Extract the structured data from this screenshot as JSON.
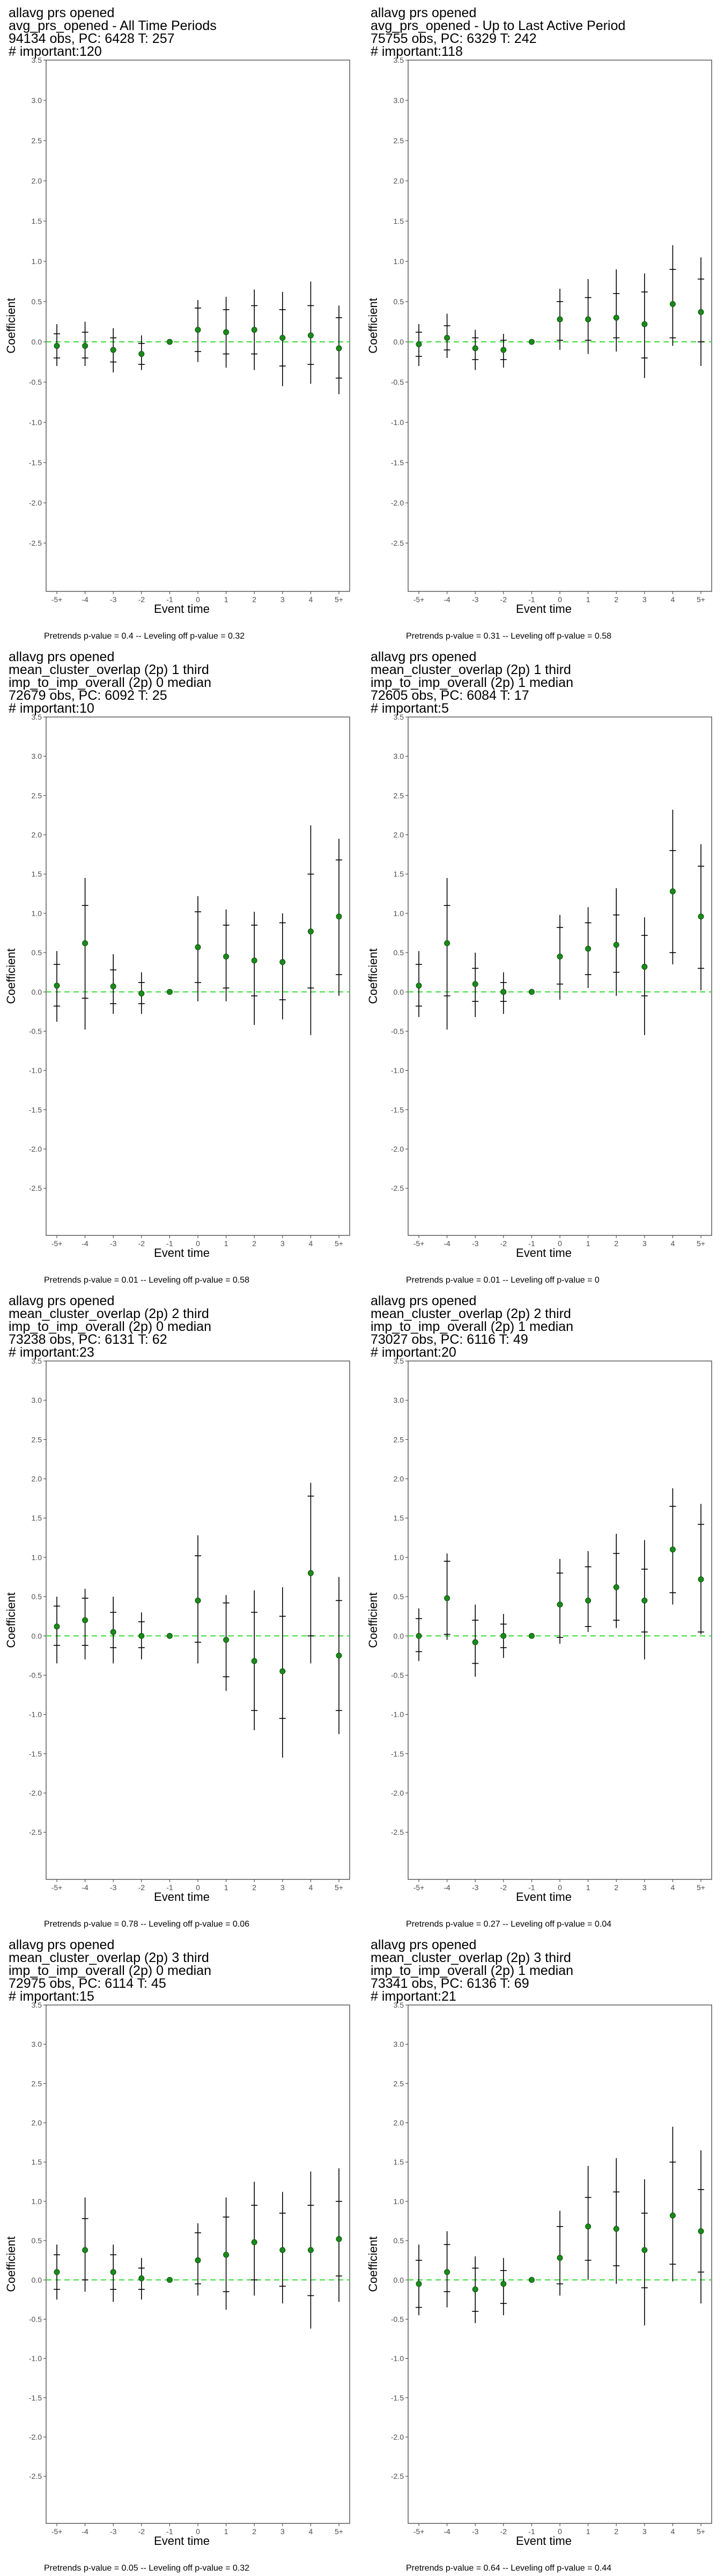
{
  "chart_data": [
    {
      "type": "scatter",
      "title_lines": [
        "allavg prs opened",
        "avg_prs_opened - All Time Periods",
        "94134 obs, PC: 6428 T: 257",
        "# important:120"
      ],
      "xlabel": "Event time",
      "ylabel": "Coefficient",
      "categories": [
        "-5+",
        "-4",
        "-3",
        "-2",
        "-1",
        "0",
        "1",
        "2",
        "3",
        "4",
        "5+"
      ],
      "yticks": [
        "3.5",
        "3.0",
        "2.5",
        "2.0",
        "1.5",
        "1.0",
        "0.5",
        "0.0",
        "-0.5",
        "-1.0",
        "-1.5",
        "-2.0",
        "-2.5"
      ],
      "ylim": [
        -3.1,
        3.5
      ],
      "reference_line": 0,
      "values": [
        -0.05,
        -0.05,
        -0.1,
        -0.15,
        0,
        0.15,
        0.12,
        0.15,
        0.05,
        0.08,
        -0.08
      ],
      "inner_ci": [
        [
          -0.2,
          0.1
        ],
        [
          -0.2,
          0.12
        ],
        [
          -0.25,
          0.05
        ],
        [
          -0.28,
          -0.02
        ],
        [
          0,
          0
        ],
        [
          -0.12,
          0.42
        ],
        [
          -0.15,
          0.4
        ],
        [
          -0.15,
          0.45
        ],
        [
          -0.3,
          0.4
        ],
        [
          -0.28,
          0.45
        ],
        [
          -0.45,
          0.3
        ]
      ],
      "outer_ci": [
        [
          -0.3,
          0.22
        ],
        [
          -0.3,
          0.25
        ],
        [
          -0.38,
          0.17
        ],
        [
          -0.35,
          0.08
        ],
        [
          0,
          0
        ],
        [
          -0.25,
          0.52
        ],
        [
          -0.32,
          0.56
        ],
        [
          -0.35,
          0.65
        ],
        [
          -0.55,
          0.62
        ],
        [
          -0.52,
          0.75
        ],
        [
          -0.65,
          0.45
        ]
      ],
      "caption": "Pretrends p-value = 0.4 -- Leveling off p-value = 0.32"
    },
    {
      "type": "scatter",
      "title_lines": [
        "allavg prs opened",
        "avg_prs_opened - Up to Last Active Period",
        "75755 obs, PC: 6329 T: 242",
        "# important:118"
      ],
      "xlabel": "Event time",
      "ylabel": "Coefficient",
      "categories": [
        "-5+",
        "-4",
        "-3",
        "-2",
        "-1",
        "0",
        "1",
        "2",
        "3",
        "4",
        "5+"
      ],
      "yticks": [
        "3.5",
        "3.0",
        "2.5",
        "2.0",
        "1.5",
        "1.0",
        "0.5",
        "0.0",
        "-0.5",
        "-1.0",
        "-1.5",
        "-2.0",
        "-2.5"
      ],
      "ylim": [
        -3.1,
        3.5
      ],
      "reference_line": 0,
      "values": [
        -0.03,
        0.05,
        -0.08,
        -0.1,
        0,
        0.28,
        0.28,
        0.3,
        0.22,
        0.47,
        0.37
      ],
      "inner_ci": [
        [
          -0.18,
          0.12
        ],
        [
          -0.1,
          0.2
        ],
        [
          -0.22,
          0.05
        ],
        [
          -0.22,
          0.02
        ],
        [
          0,
          0
        ],
        [
          0.02,
          0.5
        ],
        [
          0.02,
          0.55
        ],
        [
          0.05,
          0.6
        ],
        [
          -0.2,
          0.62
        ],
        [
          0.05,
          0.9
        ],
        [
          0.0,
          0.78
        ]
      ],
      "outer_ci": [
        [
          -0.3,
          0.22
        ],
        [
          -0.2,
          0.35
        ],
        [
          -0.35,
          0.15
        ],
        [
          -0.32,
          0.1
        ],
        [
          0,
          0
        ],
        [
          -0.1,
          0.66
        ],
        [
          -0.15,
          0.78
        ],
        [
          -0.12,
          0.9
        ],
        [
          -0.45,
          0.85
        ],
        [
          -0.05,
          1.2
        ],
        [
          -0.3,
          1.05
        ]
      ],
      "caption": "Pretrends p-value = 0.31 -- Leveling off p-value = 0.58"
    },
    {
      "type": "scatter",
      "title_lines": [
        "allavg prs opened",
        "mean_cluster_overlap (2p) 1 third",
        "imp_to_imp_overall (2p) 0 median",
        "72679 obs, PC: 6092 T: 25",
        "# important:10"
      ],
      "xlabel": "Event time",
      "ylabel": "Coefficient",
      "categories": [
        "-5+",
        "-4",
        "-3",
        "-2",
        "-1",
        "0",
        "1",
        "2",
        "3",
        "4",
        "5+"
      ],
      "yticks": [
        "3.5",
        "3.0",
        "2.5",
        "2.0",
        "1.5",
        "1.0",
        "0.5",
        "0.0",
        "-0.5",
        "-1.0",
        "-1.5",
        "-2.0",
        "-2.5"
      ],
      "ylim": [
        -3.1,
        3.5
      ],
      "reference_line": 0,
      "values": [
        0.08,
        0.62,
        0.07,
        -0.02,
        0,
        0.57,
        0.45,
        0.4,
        0.38,
        0.77,
        0.96
      ],
      "inner_ci": [
        [
          -0.18,
          0.35
        ],
        [
          -0.08,
          1.1
        ],
        [
          -0.15,
          0.28
        ],
        [
          -0.15,
          0.12
        ],
        [
          0,
          0
        ],
        [
          0.12,
          1.02
        ],
        [
          0.05,
          0.85
        ],
        [
          -0.05,
          0.85
        ],
        [
          -0.1,
          0.88
        ],
        [
          0.05,
          1.5
        ],
        [
          0.22,
          1.68
        ]
      ],
      "outer_ci": [
        [
          -0.38,
          0.52
        ],
        [
          -0.48,
          1.45
        ],
        [
          -0.28,
          0.48
        ],
        [
          -0.28,
          0.25
        ],
        [
          0,
          0
        ],
        [
          -0.12,
          1.22
        ],
        [
          -0.12,
          1.05
        ],
        [
          -0.42,
          1.02
        ],
        [
          -0.35,
          1.0
        ],
        [
          -0.55,
          2.12
        ],
        [
          -0.05,
          1.95
        ]
      ],
      "caption": "Pretrends p-value = 0.01 -- Leveling off p-value = 0.58"
    },
    {
      "type": "scatter",
      "title_lines": [
        "allavg prs opened",
        "mean_cluster_overlap (2p) 1 third",
        "imp_to_imp_overall (2p) 1 median",
        "72605 obs, PC: 6084 T: 17",
        "# important:5"
      ],
      "xlabel": "Event time",
      "ylabel": "Coefficient",
      "categories": [
        "-5+",
        "-4",
        "-3",
        "-2",
        "-1",
        "0",
        "1",
        "2",
        "3",
        "4",
        "5+"
      ],
      "yticks": [
        "3.5",
        "3.0",
        "2.5",
        "2.0",
        "1.5",
        "1.0",
        "0.5",
        "0.0",
        "-0.5",
        "-1.0",
        "-1.5",
        "-2.0",
        "-2.5"
      ],
      "ylim": [
        -3.1,
        3.5
      ],
      "reference_line": 0,
      "values": [
        0.08,
        0.62,
        0.1,
        0.0,
        0,
        0.45,
        0.55,
        0.6,
        0.32,
        1.28,
        0.96
      ],
      "inner_ci": [
        [
          -0.18,
          0.35
        ],
        [
          -0.05,
          1.1
        ],
        [
          -0.12,
          0.3
        ],
        [
          -0.12,
          0.12
        ],
        [
          0,
          0
        ],
        [
          0.1,
          0.82
        ],
        [
          0.22,
          0.88
        ],
        [
          0.25,
          0.98
        ],
        [
          -0.05,
          0.72
        ],
        [
          0.5,
          1.8
        ],
        [
          0.3,
          1.6
        ]
      ],
      "outer_ci": [
        [
          -0.32,
          0.52
        ],
        [
          -0.48,
          1.45
        ],
        [
          -0.32,
          0.5
        ],
        [
          -0.28,
          0.25
        ],
        [
          0,
          0
        ],
        [
          -0.1,
          0.98
        ],
        [
          0.05,
          1.08
        ],
        [
          -0.05,
          1.32
        ],
        [
          -0.55,
          0.95
        ],
        [
          0.35,
          2.32
        ],
        [
          0.02,
          1.88
        ]
      ],
      "caption": "Pretrends p-value = 0.01 -- Leveling off p-value = 0"
    },
    {
      "type": "scatter",
      "title_lines": [
        "allavg prs opened",
        "mean_cluster_overlap (2p) 2 third",
        "imp_to_imp_overall (2p) 0 median",
        "73238 obs, PC: 6131 T: 62",
        "# important:23"
      ],
      "xlabel": "Event time",
      "ylabel": "Coefficient",
      "categories": [
        "-5+",
        "-4",
        "-3",
        "-2",
        "-1",
        "0",
        "1",
        "2",
        "3",
        "4",
        "5+"
      ],
      "yticks": [
        "3.5",
        "3.0",
        "2.5",
        "2.0",
        "1.5",
        "1.0",
        "0.5",
        "0.0",
        "-0.5",
        "-1.0",
        "-1.5",
        "-2.0",
        "-2.5"
      ],
      "ylim": [
        -3.1,
        3.5
      ],
      "reference_line": 0,
      "values": [
        0.12,
        0.2,
        0.05,
        0.0,
        0,
        0.45,
        -0.05,
        -0.32,
        -0.45,
        0.8,
        -0.25
      ],
      "inner_ci": [
        [
          -0.12,
          0.38
        ],
        [
          -0.12,
          0.48
        ],
        [
          -0.15,
          0.3
        ],
        [
          -0.15,
          0.18
        ],
        [
          0,
          0
        ],
        [
          -0.08,
          1.02
        ],
        [
          -0.52,
          0.42
        ],
        [
          -0.95,
          0.3
        ],
        [
          -1.05,
          0.25
        ],
        [
          0.0,
          1.78
        ],
        [
          -0.95,
          0.45
        ]
      ],
      "outer_ci": [
        [
          -0.35,
          0.5
        ],
        [
          -0.3,
          0.6
        ],
        [
          -0.35,
          0.5
        ],
        [
          -0.3,
          0.3
        ],
        [
          0,
          0
        ],
        [
          -0.35,
          1.28
        ],
        [
          -0.7,
          0.52
        ],
        [
          -1.2,
          0.58
        ],
        [
          -1.55,
          0.62
        ],
        [
          -0.35,
          1.95
        ],
        [
          -1.25,
          0.75
        ]
      ],
      "caption": "Pretrends p-value = 0.78 -- Leveling off p-value = 0.06"
    },
    {
      "type": "scatter",
      "title_lines": [
        "allavg prs opened",
        "mean_cluster_overlap (2p) 2 third",
        "imp_to_imp_overall (2p) 1 median",
        "73027 obs, PC: 6116 T: 49",
        "# important:20"
      ],
      "xlabel": "Event time",
      "ylabel": "Coefficient",
      "categories": [
        "-5+",
        "-4",
        "-3",
        "-2",
        "-1",
        "0",
        "1",
        "2",
        "3",
        "4",
        "5+"
      ],
      "yticks": [
        "3.5",
        "3.0",
        "2.5",
        "2.0",
        "1.5",
        "1.0",
        "0.5",
        "0.0",
        "-0.5",
        "-1.0",
        "-1.5",
        "-2.0",
        "-2.5"
      ],
      "ylim": [
        -3.1,
        3.5
      ],
      "reference_line": 0,
      "values": [
        0.0,
        0.48,
        -0.08,
        0.0,
        0,
        0.4,
        0.45,
        0.62,
        0.45,
        1.1,
        0.72
      ],
      "inner_ci": [
        [
          -0.2,
          0.22
        ],
        [
          0.02,
          0.95
        ],
        [
          -0.35,
          0.2
        ],
        [
          -0.15,
          0.15
        ],
        [
          0,
          0
        ],
        [
          -0.02,
          0.8
        ],
        [
          0.12,
          0.88
        ],
        [
          0.2,
          1.05
        ],
        [
          0.05,
          0.85
        ],
        [
          0.55,
          1.65
        ],
        [
          0.05,
          1.42
        ]
      ],
      "outer_ci": [
        [
          -0.32,
          0.35
        ],
        [
          -0.05,
          1.05
        ],
        [
          -0.52,
          0.4
        ],
        [
          -0.28,
          0.28
        ],
        [
          0,
          0
        ],
        [
          -0.1,
          0.98
        ],
        [
          0.05,
          1.08
        ],
        [
          0.1,
          1.3
        ],
        [
          -0.3,
          1.22
        ],
        [
          0.4,
          1.88
        ],
        [
          0.02,
          1.68
        ]
      ],
      "caption": "Pretrends p-value = 0.27 -- Leveling off p-value = 0.04"
    },
    {
      "type": "scatter",
      "title_lines": [
        "allavg prs opened",
        "mean_cluster_overlap (2p) 3 third",
        "imp_to_imp_overall (2p) 0 median",
        "72975 obs, PC: 6114 T: 45",
        "# important:15"
      ],
      "xlabel": "Event time",
      "ylabel": "Coefficient",
      "categories": [
        "-5+",
        "-4",
        "-3",
        "-2",
        "-1",
        "0",
        "1",
        "2",
        "3",
        "4",
        "5+"
      ],
      "yticks": [
        "3.5",
        "3.0",
        "2.5",
        "2.0",
        "1.5",
        "1.0",
        "0.5",
        "0.0",
        "-0.5",
        "-1.0",
        "-1.5",
        "-2.0",
        "-2.5"
      ],
      "ylim": [
        -3.1,
        3.5
      ],
      "reference_line": 0,
      "values": [
        0.1,
        0.38,
        0.1,
        0.02,
        0,
        0.25,
        0.32,
        0.48,
        0.38,
        0.38,
        0.52
      ],
      "inner_ci": [
        [
          -0.12,
          0.32
        ],
        [
          0.0,
          0.78
        ],
        [
          -0.12,
          0.32
        ],
        [
          -0.12,
          0.15
        ],
        [
          0,
          0
        ],
        [
          -0.05,
          0.6
        ],
        [
          -0.15,
          0.8
        ],
        [
          0.0,
          0.95
        ],
        [
          -0.08,
          0.85
        ],
        [
          -0.2,
          0.95
        ],
        [
          0.05,
          1.0
        ]
      ],
      "outer_ci": [
        [
          -0.25,
          0.45
        ],
        [
          -0.15,
          1.05
        ],
        [
          -0.28,
          0.45
        ],
        [
          -0.25,
          0.28
        ],
        [
          0,
          0
        ],
        [
          -0.2,
          0.72
        ],
        [
          -0.38,
          1.05
        ],
        [
          -0.2,
          1.25
        ],
        [
          -0.3,
          1.12
        ],
        [
          -0.62,
          1.38
        ],
        [
          -0.28,
          1.42
        ]
      ],
      "caption": "Pretrends p-value = 0.05 -- Leveling off p-value = 0.32"
    },
    {
      "type": "scatter",
      "title_lines": [
        "allavg prs opened",
        "mean_cluster_overlap (2p) 3 third",
        "imp_to_imp_overall (2p) 1 median",
        "73341 obs, PC: 6136 T: 69",
        "# important:21"
      ],
      "xlabel": "Event time",
      "ylabel": "Coefficient",
      "categories": [
        "-5+",
        "-4",
        "-3",
        "-2",
        "-1",
        "0",
        "1",
        "2",
        "3",
        "4",
        "5+"
      ],
      "yticks": [
        "3.5",
        "3.0",
        "2.5",
        "2.0",
        "1.5",
        "1.0",
        "0.5",
        "0.0",
        "-0.5",
        "-1.0",
        "-1.5",
        "-2.0",
        "-2.5"
      ],
      "ylim": [
        -3.1,
        3.5
      ],
      "reference_line": 0,
      "values": [
        -0.05,
        0.1,
        -0.12,
        -0.05,
        0,
        0.28,
        0.68,
        0.65,
        0.38,
        0.82,
        0.62
      ],
      "inner_ci": [
        [
          -0.35,
          0.25
        ],
        [
          -0.15,
          0.45
        ],
        [
          -0.4,
          0.15
        ],
        [
          -0.3,
          0.12
        ],
        [
          0,
          0
        ],
        [
          -0.05,
          0.68
        ],
        [
          0.25,
          1.05
        ],
        [
          0.18,
          1.12
        ],
        [
          -0.1,
          0.85
        ],
        [
          0.2,
          1.5
        ],
        [
          0.1,
          1.15
        ]
      ],
      "outer_ci": [
        [
          -0.45,
          0.45
        ],
        [
          -0.35,
          0.62
        ],
        [
          -0.55,
          0.3
        ],
        [
          -0.45,
          0.28
        ],
        [
          0,
          0
        ],
        [
          -0.2,
          0.88
        ],
        [
          0.0,
          1.45
        ],
        [
          -0.05,
          1.55
        ],
        [
          -0.58,
          1.28
        ],
        [
          -0.02,
          1.95
        ],
        [
          -0.3,
          1.65
        ]
      ],
      "caption": "Pretrends p-value = 0.64 -- Leveling off p-value = 0.44"
    }
  ]
}
